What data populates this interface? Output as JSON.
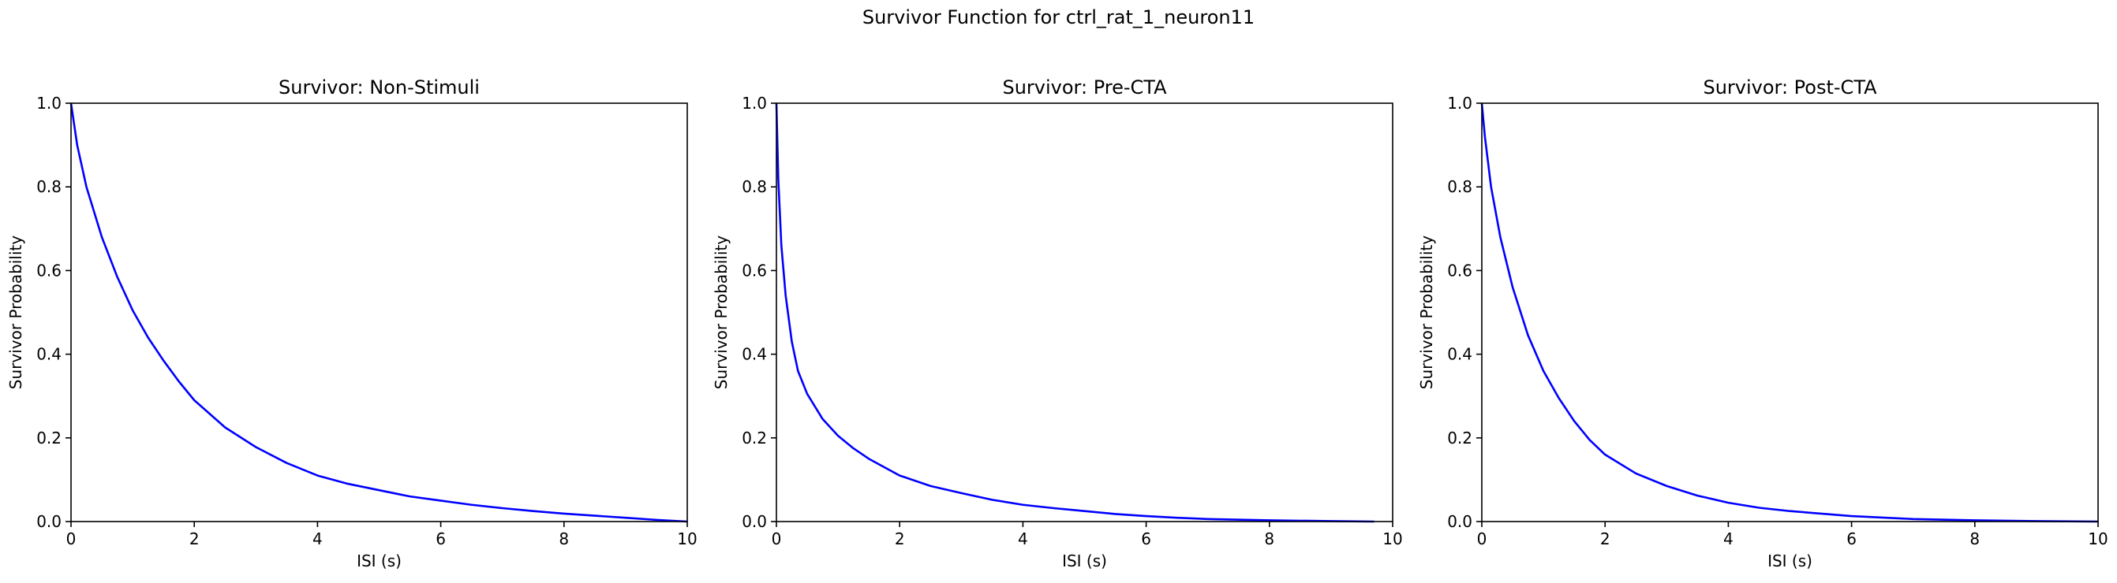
{
  "figure": {
    "suptitle": "Survivor Function for ctrl_rat_1_neuron11",
    "line_color": "#0000ff"
  },
  "chart_data": [
    {
      "type": "line",
      "title": "Survivor: Non-Stimuli",
      "xlabel": "ISI (s)",
      "ylabel": "Survivor Probability",
      "xlim": [
        0,
        10
      ],
      "ylim": [
        0,
        1
      ],
      "xticks": [
        "0",
        "2",
        "4",
        "6",
        "8",
        "10"
      ],
      "yticks": [
        "0.0",
        "0.2",
        "0.4",
        "0.6",
        "0.8",
        "1.0"
      ],
      "grid": false,
      "series": [
        {
          "x": [
            0,
            0.1,
            0.25,
            0.5,
            0.75,
            1,
            1.25,
            1.5,
            1.75,
            2,
            2.5,
            3,
            3.5,
            4,
            4.5,
            5,
            5.5,
            6,
            6.5,
            7,
            7.5,
            8,
            8.5,
            9,
            9.5,
            10
          ],
          "values": [
            1.0,
            0.9,
            0.8,
            0.68,
            0.585,
            0.505,
            0.44,
            0.385,
            0.335,
            0.29,
            0.225,
            0.178,
            0.14,
            0.11,
            0.09,
            0.075,
            0.06,
            0.05,
            0.04,
            0.032,
            0.025,
            0.019,
            0.014,
            0.009,
            0.004,
            0.0
          ]
        }
      ]
    },
    {
      "type": "line",
      "title": "Survivor: Pre-CTA",
      "xlabel": "ISI (s)",
      "ylabel": "Survivor Probability",
      "xlim": [
        0,
        10
      ],
      "ylim": [
        0,
        1
      ],
      "xticks": [
        "0",
        "2",
        "4",
        "6",
        "8",
        "10"
      ],
      "yticks": [
        "0.0",
        "0.2",
        "0.4",
        "0.6",
        "0.8",
        "1.0"
      ],
      "grid": false,
      "series": [
        {
          "x": [
            0,
            0.03,
            0.08,
            0.15,
            0.25,
            0.35,
            0.5,
            0.75,
            1,
            1.25,
            1.5,
            2,
            2.5,
            3,
            3.5,
            4,
            4.5,
            5,
            5.5,
            6,
            6.5,
            7,
            8,
            9,
            9.7
          ],
          "values": [
            1.0,
            0.82,
            0.66,
            0.54,
            0.43,
            0.36,
            0.305,
            0.245,
            0.205,
            0.175,
            0.15,
            0.11,
            0.085,
            0.068,
            0.052,
            0.04,
            0.032,
            0.025,
            0.018,
            0.013,
            0.009,
            0.006,
            0.003,
            0.001,
            0.0
          ]
        }
      ]
    },
    {
      "type": "line",
      "title": "Survivor: Post-CTA",
      "xlabel": "ISI (s)",
      "ylabel": "Survivor Probability",
      "xlim": [
        0,
        10
      ],
      "ylim": [
        0,
        1
      ],
      "xticks": [
        "0",
        "2",
        "4",
        "6",
        "8",
        "10"
      ],
      "yticks": [
        "0.0",
        "0.2",
        "0.4",
        "0.6",
        "0.8",
        "1.0"
      ],
      "grid": false,
      "series": [
        {
          "x": [
            0,
            0.05,
            0.15,
            0.3,
            0.5,
            0.75,
            1,
            1.25,
            1.5,
            1.75,
            2,
            2.5,
            3,
            3.5,
            4,
            4.5,
            5,
            6,
            7,
            8,
            9,
            10
          ],
          "values": [
            1.0,
            0.92,
            0.8,
            0.68,
            0.56,
            0.445,
            0.36,
            0.295,
            0.24,
            0.195,
            0.16,
            0.115,
            0.085,
            0.062,
            0.045,
            0.033,
            0.025,
            0.013,
            0.006,
            0.003,
            0.001,
            0.0
          ]
        }
      ]
    }
  ]
}
